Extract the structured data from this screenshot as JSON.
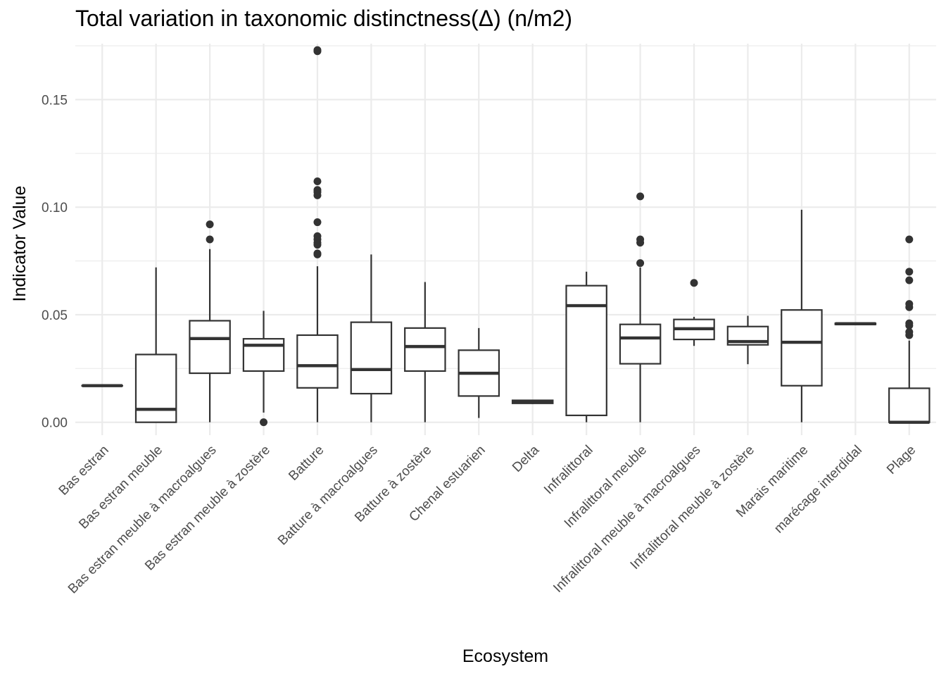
{
  "chart_data": {
    "type": "boxplot",
    "title": "Total variation in taxonomic distinctness(Δ) (n/m2)",
    "xlabel": "Ecosystem",
    "ylabel": "Indicator Value",
    "ylim": [
      -0.006,
      0.176
    ],
    "yticks": [
      0.0,
      0.05,
      0.1,
      0.15
    ],
    "ytick_labels": [
      "0.00",
      "0.05",
      "0.10",
      "0.15"
    ],
    "grid": true,
    "categories": [
      "Bas estran",
      "Bas estran meuble",
      "Bas estran meuble à macroalgues",
      "Bas estran meuble à zostère",
      "Batture",
      "Batture à macroalgues",
      "Batture à zostère",
      "Chenal estuarien",
      "Delta",
      "Infralittoral",
      "Infralittoral meuble",
      "Infralittoral meuble à macroalgues",
      "Infralittoral meuble à zostère",
      "Marais maritime",
      "marécage interdidal",
      "Plage"
    ],
    "boxes": [
      {
        "whisker_low": 0.017,
        "q1": 0.017,
        "median": 0.017,
        "q3": 0.017,
        "whisker_high": 0.017,
        "outliers": []
      },
      {
        "whisker_low": 0.0,
        "q1": 0.0,
        "median": 0.006,
        "q3": 0.0315,
        "whisker_high": 0.072,
        "outliers": []
      },
      {
        "whisker_low": 0.0,
        "q1": 0.0228,
        "median": 0.0389,
        "q3": 0.0472,
        "whisker_high": 0.0805,
        "outliers": [
          0.085,
          0.092
        ]
      },
      {
        "whisker_low": 0.0045,
        "q1": 0.0238,
        "median": 0.0358,
        "q3": 0.0388,
        "whisker_high": 0.0518,
        "outliers": [
          0.0
        ]
      },
      {
        "whisker_low": 0.0,
        "q1": 0.016,
        "median": 0.0263,
        "q3": 0.0405,
        "whisker_high": 0.0725,
        "outliers": [
          0.078,
          0.0785,
          0.0825,
          0.0835,
          0.085,
          0.0865,
          0.093,
          0.1055,
          0.107,
          0.108,
          0.112,
          0.1725,
          0.173
        ]
      },
      {
        "whisker_low": 0.0,
        "q1": 0.0133,
        "median": 0.0245,
        "q3": 0.0465,
        "whisker_high": 0.078,
        "outliers": []
      },
      {
        "whisker_low": 0.0,
        "q1": 0.0238,
        "median": 0.0352,
        "q3": 0.0438,
        "whisker_high": 0.0652,
        "outliers": []
      },
      {
        "whisker_low": 0.002,
        "q1": 0.0122,
        "median": 0.0228,
        "q3": 0.0335,
        "whisker_high": 0.0438,
        "outliers": []
      },
      {
        "whisker_low": 0.0085,
        "q1": 0.0088,
        "median": 0.0095,
        "q3": 0.0102,
        "whisker_high": 0.0105,
        "outliers": []
      },
      {
        "whisker_low": 0.0,
        "q1": 0.0032,
        "median": 0.0542,
        "q3": 0.0635,
        "whisker_high": 0.07,
        "outliers": []
      },
      {
        "whisker_low": 0.0,
        "q1": 0.0272,
        "median": 0.0392,
        "q3": 0.0455,
        "whisker_high": 0.072,
        "outliers": [
          0.074,
          0.0835,
          0.085,
          0.105
        ]
      },
      {
        "whisker_low": 0.0355,
        "q1": 0.0385,
        "median": 0.0435,
        "q3": 0.0478,
        "whisker_high": 0.049,
        "outliers": [
          0.0648
        ]
      },
      {
        "whisker_low": 0.027,
        "q1": 0.036,
        "median": 0.0375,
        "q3": 0.0445,
        "whisker_high": 0.0495,
        "outliers": []
      },
      {
        "whisker_low": 0.0,
        "q1": 0.017,
        "median": 0.0372,
        "q3": 0.0522,
        "whisker_high": 0.0988,
        "outliers": []
      },
      {
        "whisker_low": 0.0455,
        "q1": 0.0455,
        "median": 0.0458,
        "q3": 0.046,
        "whisker_high": 0.046,
        "outliers": []
      },
      {
        "whisker_low": 0.0,
        "q1": 0.0,
        "median": 0.0,
        "q3": 0.0158,
        "whisker_high": 0.038,
        "outliers": [
          0.0405,
          0.042,
          0.045,
          0.046,
          0.0535,
          0.055,
          0.066,
          0.07,
          0.085
        ]
      }
    ]
  }
}
